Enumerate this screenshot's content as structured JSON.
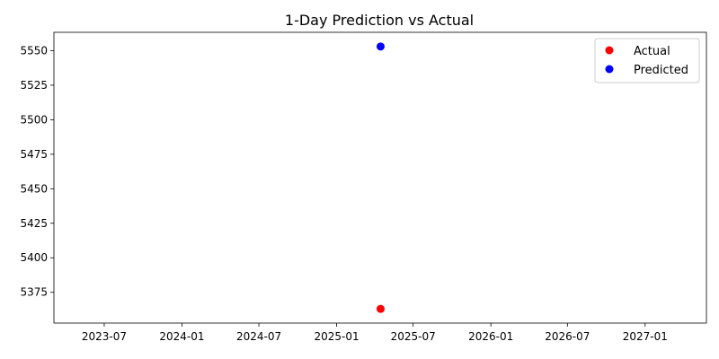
{
  "chart_data": {
    "type": "scatter",
    "title": "1-Day Prediction vs Actual",
    "xlabel": "",
    "ylabel": "",
    "x_axis_type": "date",
    "xlim": [
      "2023-03-04",
      "2027-05-26"
    ],
    "ylim": [
      5352.7,
      5563.3
    ],
    "x_ticks": [
      "2023-07",
      "2024-01",
      "2024-07",
      "2025-01",
      "2025-07",
      "2026-01",
      "2026-07",
      "2027-01"
    ],
    "y_ticks": [
      5375,
      5400,
      5425,
      5450,
      5475,
      5500,
      5525,
      5550
    ],
    "grid": false,
    "legend_position": "top-right",
    "series": [
      {
        "name": "Actual",
        "color": "#ff0000",
        "marker": "circle",
        "points": [
          {
            "x": "2025-04-15",
            "y": 5363
          }
        ]
      },
      {
        "name": "Predicted",
        "color": "#0000ff",
        "marker": "circle",
        "points": [
          {
            "x": "2025-04-15",
            "y": 5553
          }
        ]
      }
    ]
  }
}
